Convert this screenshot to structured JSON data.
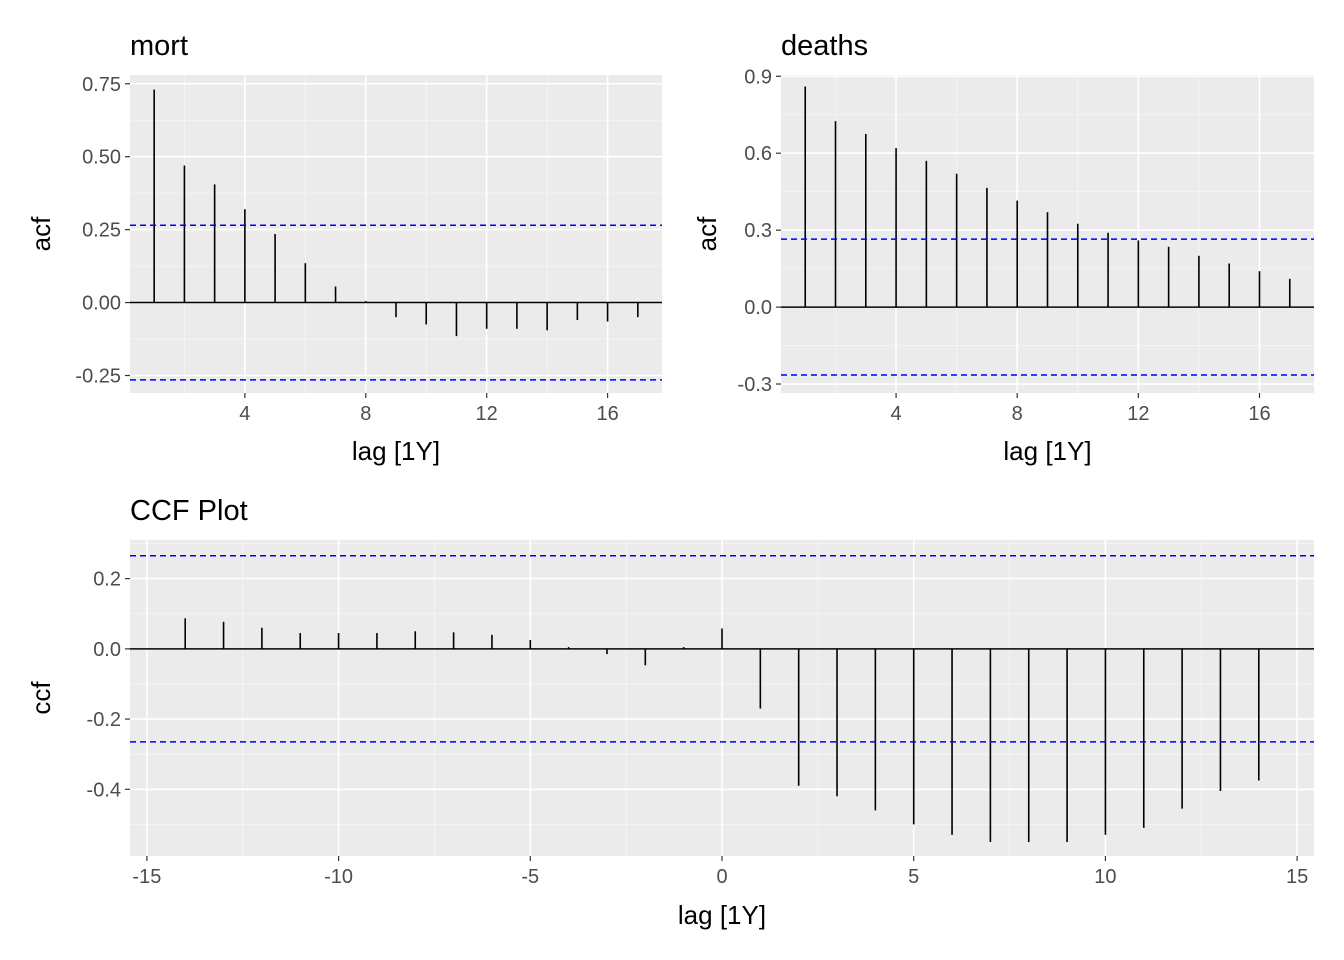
{
  "chart_data": [
    {
      "type": "bar",
      "title": "mort",
      "xlabel": "lag [1Y]",
      "ylabel": "acf",
      "x": [
        1,
        2,
        3,
        4,
        5,
        6,
        7,
        8,
        9,
        10,
        11,
        12,
        13,
        14,
        15,
        16,
        17
      ],
      "values": [
        0.73,
        0.47,
        0.405,
        0.32,
        0.235,
        0.135,
        0.055,
        0.005,
        -0.05,
        -0.075,
        -0.115,
        -0.09,
        -0.09,
        -0.095,
        -0.06,
        -0.065,
        -0.05
      ],
      "xlim": [
        0.2,
        17.8
      ],
      "ylim": [
        -0.31,
        0.78
      ],
      "x_ticks": [
        4,
        8,
        12,
        16
      ],
      "y_ticks": [
        -0.25,
        0,
        0.25,
        0.5,
        0.75
      ],
      "x_tick_labels": [
        "4",
        "8",
        "12",
        "16"
      ],
      "y_tick_labels": [
        "-0.25",
        "0.00",
        "0.25",
        "0.50",
        "0.75"
      ],
      "confidence_bounds": [
        0.265,
        -0.265
      ],
      "grid": true
    },
    {
      "type": "bar",
      "title": "deaths",
      "xlabel": "lag [1Y]",
      "ylabel": "acf",
      "x": [
        1,
        2,
        3,
        4,
        5,
        6,
        7,
        8,
        9,
        10,
        11,
        12,
        13,
        14,
        15,
        16,
        17
      ],
      "values": [
        0.86,
        0.725,
        0.675,
        0.62,
        0.57,
        0.52,
        0.465,
        0.415,
        0.37,
        0.325,
        0.29,
        0.26,
        0.235,
        0.2,
        0.17,
        0.14,
        0.11
      ],
      "xlim": [
        0.2,
        17.8
      ],
      "ylim": [
        -0.335,
        0.905
      ],
      "x_ticks": [
        4,
        8,
        12,
        16
      ],
      "y_ticks": [
        -0.3,
        0,
        0.3,
        0.6,
        0.9
      ],
      "x_tick_labels": [
        "4",
        "8",
        "12",
        "16"
      ],
      "y_tick_labels": [
        "-0.3",
        "0.0",
        "0.3",
        "0.6",
        "0.9"
      ],
      "confidence_bounds": [
        0.265,
        -0.265
      ],
      "grid": true
    },
    {
      "type": "bar",
      "title": "CCF Plot",
      "xlabel": "lag [1Y]",
      "ylabel": "ccf",
      "x": [
        -14,
        -13,
        -12,
        -11,
        -10,
        -9,
        -8,
        -7,
        -6,
        -5,
        -4,
        -3,
        -2,
        -1,
        0,
        1,
        2,
        3,
        4,
        5,
        6,
        7,
        8,
        9,
        10,
        11,
        12,
        13,
        14
      ],
      "values": [
        0.087,
        0.077,
        0.06,
        0.045,
        0.045,
        0.045,
        0.05,
        0.047,
        0.04,
        0.025,
        0.005,
        -0.015,
        -0.047,
        0.005,
        0.058,
        -0.17,
        -0.39,
        -0.42,
        -0.46,
        -0.5,
        -0.53,
        -0.55,
        -0.55,
        -0.55,
        -0.53,
        -0.51,
        -0.455,
        -0.405,
        -0.375
      ],
      "xlim": [
        -15.44,
        15.44
      ],
      "ylim": [
        -0.59,
        0.31
      ],
      "x_ticks": [
        -15,
        -10,
        -5,
        0,
        5,
        10,
        15
      ],
      "y_ticks": [
        -0.4,
        -0.2,
        0,
        0.2
      ],
      "x_tick_labels": [
        "-15",
        "-10",
        "-5",
        "0",
        "5",
        "10",
        "15"
      ],
      "y_tick_labels": [
        "-0.4",
        "-0.2",
        "0.0",
        "0.2"
      ],
      "confidence_bounds": [
        0.265,
        -0.265
      ],
      "grid": true
    }
  ],
  "colors": {
    "panel_background": "#ebebeb",
    "grid_major": "#ffffff",
    "bars": "#000000",
    "zero_line": "#000000",
    "confidence_lines": "#0000ff",
    "tick_text": "#4d4d4d",
    "tick_marks": "#333333"
  }
}
